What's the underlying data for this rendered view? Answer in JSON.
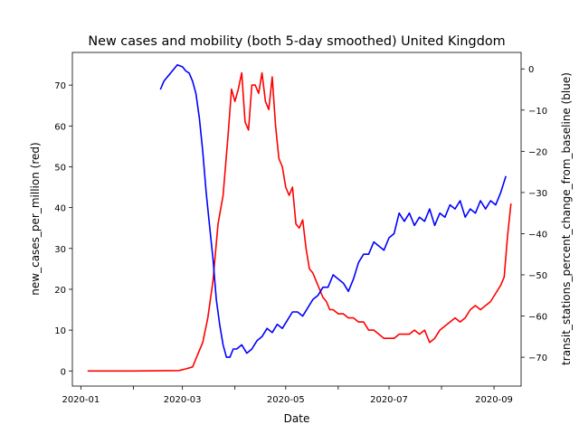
{
  "chart_data": {
    "type": "line",
    "title": "New cases and mobility (both 5-day smoothed) United Kingdom",
    "xlabel": "Date",
    "ylabel_left": "new_cases_per_million (red)",
    "ylabel_right": "transit_stations_percent_change_from_baseline (blue)",
    "x_ticks": [
      "2020-01",
      "2020-03",
      "2020-05",
      "2020-07",
      "2020-09"
    ],
    "x_minor_ticks": [
      "2020-02",
      "2020-04",
      "2020-06",
      "2020-08"
    ],
    "x_range": [
      "2019-12-27",
      "2020-09-17"
    ],
    "y_left_ticks": [
      0,
      10,
      20,
      30,
      40,
      50,
      60,
      70
    ],
    "y_left_range": [
      -3.7,
      78
    ],
    "y_right_ticks": [
      0,
      -10,
      -20,
      -30,
      -40,
      -50,
      -60,
      -70
    ],
    "y_right_range": [
      -77,
      4
    ],
    "series": [
      {
        "name": "new_cases_per_million",
        "axis": "left",
        "color": "#ff0000",
        "x": [
          "2020-01-05",
          "2020-02-01",
          "2020-02-28",
          "2020-03-03",
          "2020-03-07",
          "2020-03-10",
          "2020-03-13",
          "2020-03-16",
          "2020-03-19",
          "2020-03-22",
          "2020-03-25",
          "2020-03-28",
          "2020-03-30",
          "2020-04-01",
          "2020-04-03",
          "2020-04-05",
          "2020-04-07",
          "2020-04-09",
          "2020-04-11",
          "2020-04-13",
          "2020-04-15",
          "2020-04-17",
          "2020-04-19",
          "2020-04-21",
          "2020-04-23",
          "2020-04-25",
          "2020-04-27",
          "2020-04-29",
          "2020-05-01",
          "2020-05-03",
          "2020-05-05",
          "2020-05-07",
          "2020-05-09",
          "2020-05-11",
          "2020-05-13",
          "2020-05-15",
          "2020-05-17",
          "2020-05-19",
          "2020-05-21",
          "2020-05-23",
          "2020-05-25",
          "2020-05-27",
          "2020-05-29",
          "2020-06-01",
          "2020-06-04",
          "2020-06-07",
          "2020-06-10",
          "2020-06-13",
          "2020-06-16",
          "2020-06-19",
          "2020-06-22",
          "2020-06-25",
          "2020-06-28",
          "2020-07-01",
          "2020-07-04",
          "2020-07-07",
          "2020-07-10",
          "2020-07-13",
          "2020-07-16",
          "2020-07-19",
          "2020-07-22",
          "2020-07-25",
          "2020-07-28",
          "2020-07-31",
          "2020-08-03",
          "2020-08-06",
          "2020-08-09",
          "2020-08-12",
          "2020-08-15",
          "2020-08-18",
          "2020-08-21",
          "2020-08-24",
          "2020-08-27",
          "2020-08-30",
          "2020-09-02",
          "2020-09-05",
          "2020-09-07",
          "2020-09-09",
          "2020-09-11"
        ],
        "values": [
          0,
          0,
          0.1,
          0.5,
          1,
          4,
          7,
          13,
          22,
          36,
          43,
          58,
          69,
          66,
          69,
          73,
          61,
          59,
          70,
          70,
          68,
          73,
          66,
          64,
          72,
          60,
          52,
          50,
          45,
          43,
          45,
          36,
          35,
          37,
          30,
          25,
          24,
          22,
          20,
          18,
          17,
          15,
          15,
          14,
          14,
          13,
          13,
          12,
          12,
          10,
          10,
          9,
          8,
          8,
          8,
          9,
          9,
          9,
          10,
          9,
          10,
          7,
          8,
          10,
          11,
          12,
          13,
          12,
          13,
          15,
          16,
          15,
          16,
          17,
          19,
          21,
          23,
          33,
          41
        ]
      },
      {
        "name": "transit_stations_percent_change_from_baseline",
        "axis": "right",
        "color": "#0000ff",
        "x": [
          "2020-02-17",
          "2020-02-19",
          "2020-02-21",
          "2020-02-23",
          "2020-02-25",
          "2020-02-27",
          "2020-03-01",
          "2020-03-03",
          "2020-03-05",
          "2020-03-07",
          "2020-03-09",
          "2020-03-11",
          "2020-03-13",
          "2020-03-15",
          "2020-03-17",
          "2020-03-19",
          "2020-03-21",
          "2020-03-23",
          "2020-03-25",
          "2020-03-27",
          "2020-03-29",
          "2020-03-31",
          "2020-04-02",
          "2020-04-05",
          "2020-04-08",
          "2020-04-11",
          "2020-04-14",
          "2020-04-17",
          "2020-04-20",
          "2020-04-23",
          "2020-04-26",
          "2020-04-29",
          "2020-05-02",
          "2020-05-05",
          "2020-05-08",
          "2020-05-11",
          "2020-05-14",
          "2020-05-17",
          "2020-05-20",
          "2020-05-23",
          "2020-05-26",
          "2020-05-29",
          "2020-06-01",
          "2020-06-04",
          "2020-06-07",
          "2020-06-10",
          "2020-06-13",
          "2020-06-16",
          "2020-06-19",
          "2020-06-22",
          "2020-06-25",
          "2020-06-28",
          "2020-07-01",
          "2020-07-04",
          "2020-07-07",
          "2020-07-10",
          "2020-07-13",
          "2020-07-16",
          "2020-07-19",
          "2020-07-22",
          "2020-07-25",
          "2020-07-28",
          "2020-07-31",
          "2020-08-03",
          "2020-08-06",
          "2020-08-09",
          "2020-08-12",
          "2020-08-15",
          "2020-08-18",
          "2020-08-21",
          "2020-08-24",
          "2020-08-27",
          "2020-08-30",
          "2020-09-02",
          "2020-09-05",
          "2020-09-08"
        ],
        "values": [
          -5,
          -3,
          -2,
          -1,
          0,
          1,
          0.5,
          -0.5,
          -1,
          -3,
          -6,
          -12,
          -20,
          -30,
          -38,
          -46,
          -56,
          -62,
          -67,
          -70,
          -70,
          -68,
          -68,
          -67,
          -69,
          -68,
          -66,
          -65,
          -63,
          -64,
          -62,
          -63,
          -61,
          -59,
          -59,
          -60,
          -58,
          -56,
          -55,
          -53,
          -53,
          -50,
          -51,
          -52,
          -54,
          -51,
          -47,
          -45,
          -45,
          -42,
          -43,
          -44,
          -41,
          -40,
          -35,
          -37,
          -35,
          -38,
          -36,
          -37,
          -34,
          -38,
          -35,
          -36,
          -33,
          -34,
          -32,
          -36,
          -34,
          -35,
          -32,
          -34,
          -32,
          -33,
          -30,
          -26
        ]
      }
    ]
  }
}
